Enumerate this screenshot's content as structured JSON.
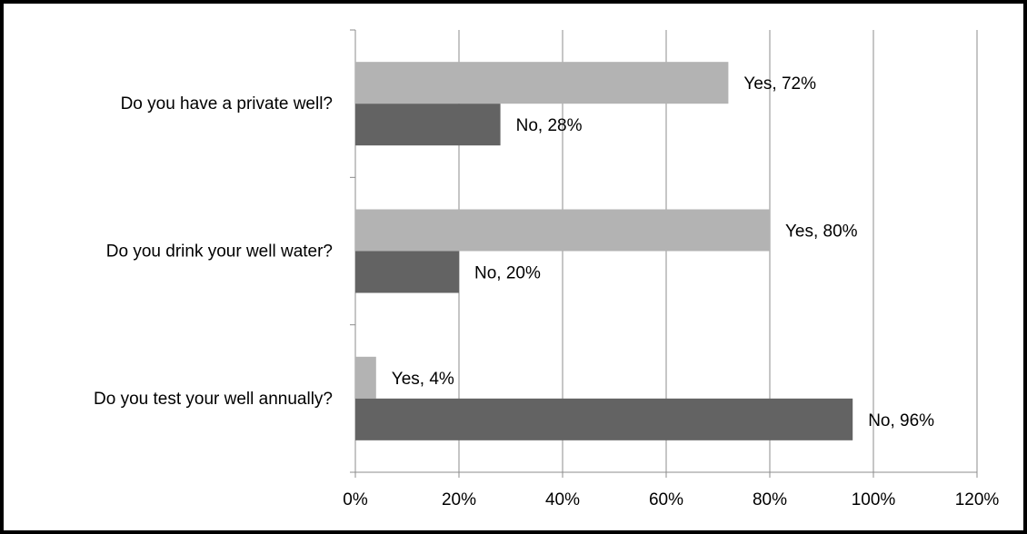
{
  "chart_data": {
    "type": "bar",
    "orientation": "horizontal",
    "categories": [
      "Do you have a private well?",
      "Do you drink your well water?",
      "Do you test your well annually?"
    ],
    "series": [
      {
        "name": "Yes",
        "values": [
          72,
          80,
          4
        ],
        "color": "#b3b3b3"
      },
      {
        "name": "No",
        "values": [
          28,
          20,
          96
        ],
        "color": "#636363"
      }
    ],
    "data_labels": [
      [
        "Yes, 72%",
        "Yes, 80%",
        "Yes, 4%"
      ],
      [
        "No, 28%",
        "No, 20%",
        "No, 96%"
      ]
    ],
    "x_ticks": [
      "0%",
      "20%",
      "40%",
      "60%",
      "80%",
      "100%",
      "120%"
    ],
    "xlim": [
      0,
      120
    ],
    "grid": true,
    "legend": "none",
    "title": "",
    "xlabel": "",
    "ylabel": ""
  }
}
